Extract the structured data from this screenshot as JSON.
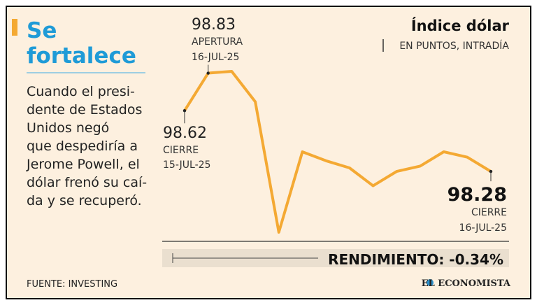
{
  "chart_data": {
    "type": "line",
    "title": "Se fortalece",
    "description": [
      "Cuando el presi-",
      "dente de Estados",
      "Unidos negó",
      "que despediría a",
      "Jerome Powell, el",
      "dólar frenó su caí-",
      "da y se recuperó."
    ],
    "heading": "Índice dólar",
    "subheading": "EN PUNTOS, INTRADÍA",
    "values": [
      98.62,
      98.83,
      98.84,
      98.67,
      97.94,
      98.39,
      98.34,
      98.3,
      98.2,
      98.28,
      98.31,
      98.39,
      98.36,
      98.28
    ],
    "color": "#f4a933",
    "annotations": [
      {
        "index": 0,
        "lines": [
          "CIERRE",
          "15-JUL-25"
        ]
      },
      {
        "index": 1,
        "lines": [
          "APERTURA",
          "16-JUL-25"
        ]
      },
      {
        "index": 13,
        "lines": [
          "CIERRE",
          "16-JUL-25"
        ]
      }
    ],
    "performance": "RENDIMIENTO: -0.34%",
    "source": "FUENTE: INVESTING",
    "brand": "EL ECONOMISTA"
  }
}
